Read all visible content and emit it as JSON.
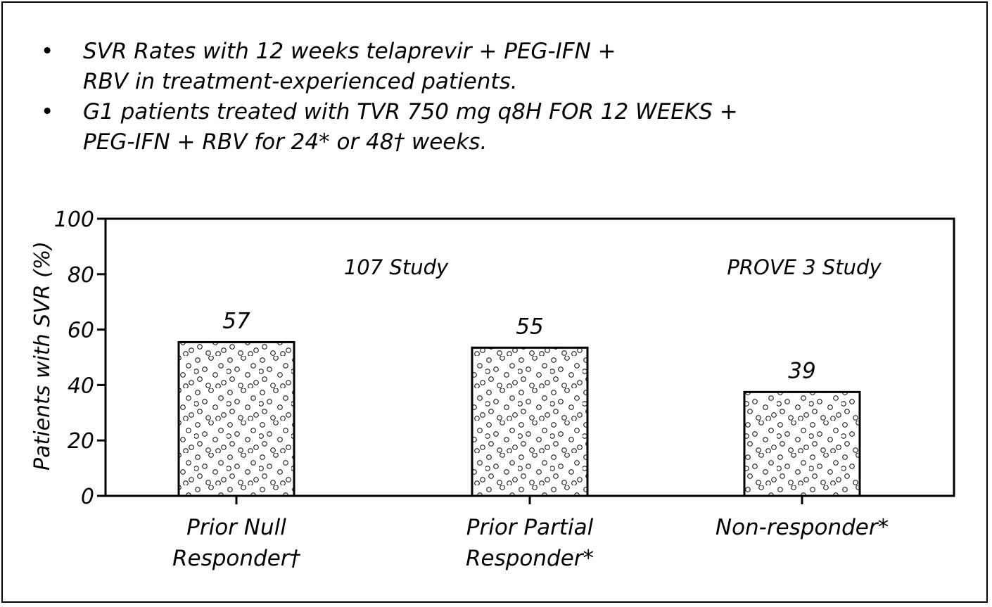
{
  "bullets": [
    {
      "marker": "•",
      "lines": [
        "SVR Rates with 12 weeks telaprevir + PEG-IFN +",
        "RBV in treatment-experienced patients."
      ]
    },
    {
      "marker": "•",
      "lines": [
        "G1 patients treated with TVR 750 mg q8H FOR 12 WEEKS +",
        "PEG-IFN + RBV for 24* or 48† weeks."
      ]
    }
  ],
  "chart_data": {
    "type": "bar",
    "ylabel": "Patients with SVR (%)",
    "ylim": [
      0,
      100
    ],
    "yticks": [
      0,
      20,
      40,
      60,
      80,
      100
    ],
    "categories": [
      [
        "Prior Null",
        "Responder†"
      ],
      [
        "Prior Partial",
        "Responder*"
      ],
      [
        "Non-responder*"
      ]
    ],
    "values": [
      57,
      55,
      39
    ],
    "data_labels": [
      "57",
      "55",
      "39"
    ],
    "annotations": [
      "107 Study",
      "PROVE 3 Study"
    ],
    "fill_pattern": "white with small open circles",
    "grid": false,
    "legend": "none"
  }
}
